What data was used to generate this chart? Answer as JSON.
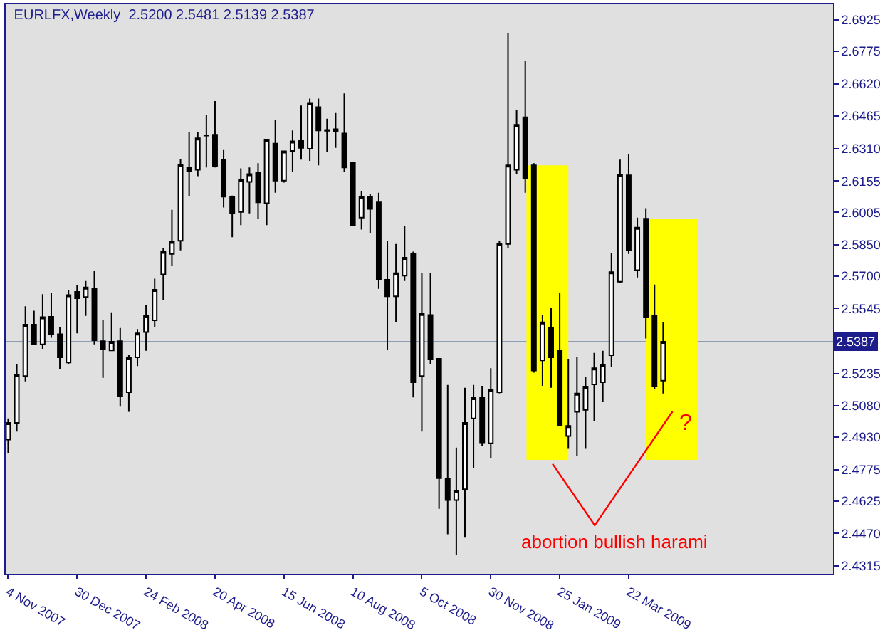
{
  "chart_data": {
    "type": "candlestick",
    "title": "EURLFX,Weekly  2.5200 2.5481 2.5139 2.5387",
    "x": [
      "2007-11-04",
      "2007-11-11",
      "2007-11-18",
      "2007-11-25",
      "2007-12-02",
      "2007-12-09",
      "2007-12-16",
      "2007-12-23",
      "2007-12-30",
      "2008-01-06",
      "2008-01-13",
      "2008-01-20",
      "2008-01-27",
      "2008-02-03",
      "2008-02-10",
      "2008-02-17",
      "2008-02-24",
      "2008-03-02",
      "2008-03-09",
      "2008-03-16",
      "2008-03-23",
      "2008-03-30",
      "2008-04-06",
      "2008-04-13",
      "2008-04-20",
      "2008-04-27",
      "2008-05-04",
      "2008-05-11",
      "2008-05-18",
      "2008-05-25",
      "2008-06-01",
      "2008-06-08",
      "2008-06-15",
      "2008-06-22",
      "2008-06-29",
      "2008-07-06",
      "2008-07-13",
      "2008-07-20",
      "2008-07-27",
      "2008-08-03",
      "2008-08-10",
      "2008-08-17",
      "2008-08-24",
      "2008-08-31",
      "2008-09-07",
      "2008-09-14",
      "2008-09-21",
      "2008-09-28",
      "2008-10-05",
      "2008-10-12",
      "2008-10-19",
      "2008-10-26",
      "2008-11-02",
      "2008-11-09",
      "2008-11-16",
      "2008-11-23",
      "2008-11-30",
      "2008-12-07",
      "2008-12-14",
      "2008-12-21",
      "2008-12-28",
      "2009-01-04",
      "2009-01-11",
      "2009-01-18",
      "2009-01-25",
      "2009-02-01",
      "2009-02-08",
      "2009-02-15",
      "2009-02-22",
      "2009-03-01",
      "2009-03-08",
      "2009-03-15",
      "2009-03-22",
      "2009-03-29",
      "2009-04-05",
      "2009-04-12",
      "2009-04-19"
    ],
    "ohlc": [
      [
        2.4919,
        2.502,
        2.4853,
        2.4999
      ],
      [
        2.4999,
        2.528,
        2.4957,
        2.5228
      ],
      [
        2.5222,
        2.5556,
        2.5197,
        2.5468
      ],
      [
        2.5468,
        2.5535,
        2.537,
        2.5374
      ],
      [
        2.5374,
        2.5614,
        2.5353,
        2.5504
      ],
      [
        2.5506,
        2.5621,
        2.5405,
        2.5422
      ],
      [
        2.5422,
        2.5458,
        2.5255,
        2.5312
      ],
      [
        2.5287,
        2.5635,
        2.528,
        2.561
      ],
      [
        2.5625,
        2.5656,
        2.5427,
        2.5594
      ],
      [
        2.56,
        2.5677,
        2.551,
        2.5646
      ],
      [
        2.564,
        2.5725,
        2.5374,
        2.5393
      ],
      [
        2.5389,
        2.5489,
        2.5214,
        2.5349
      ],
      [
        2.5345,
        2.5527,
        2.5343,
        2.5387
      ],
      [
        2.5389,
        2.5452,
        2.5076,
        2.5128
      ],
      [
        2.5145,
        2.5322,
        2.5051,
        2.5312
      ],
      [
        2.5312,
        2.5447,
        2.527,
        2.5427
      ],
      [
        2.5433,
        2.5562,
        2.5343,
        2.551
      ],
      [
        2.5489,
        2.5688,
        2.5458,
        2.5635
      ],
      [
        2.5708,
        2.5834,
        2.5587,
        2.5817
      ],
      [
        2.5806,
        2.6017,
        2.575,
        2.5865
      ],
      [
        2.5869,
        2.6261,
        2.5823,
        2.6234
      ],
      [
        2.6219,
        2.6387,
        2.6084,
        2.6203
      ],
      [
        2.6209,
        2.6391,
        2.6178,
        2.6359
      ],
      [
        2.6372,
        2.647,
        2.622,
        2.6374
      ],
      [
        2.6376,
        2.6537,
        2.622,
        2.6224
      ],
      [
        2.6257,
        2.6303,
        2.6028,
        2.608
      ],
      [
        2.608,
        2.6085,
        2.5886,
        2.6
      ],
      [
        2.6007,
        2.6215,
        2.5944,
        2.6161
      ],
      [
        2.6151,
        2.622,
        2.6,
        2.6188
      ],
      [
        2.6193,
        2.624,
        2.5973,
        2.6053
      ],
      [
        2.6049,
        2.6357,
        2.5944,
        2.6353
      ],
      [
        2.6334,
        2.6445,
        2.6099,
        2.6157
      ],
      [
        2.6157,
        2.6299,
        2.6147,
        2.6297
      ],
      [
        2.6299,
        2.6397,
        2.6199,
        2.6345
      ],
      [
        2.6349,
        2.6516,
        2.6257,
        2.6313
      ],
      [
        2.6309,
        2.6549,
        2.6251,
        2.6529
      ],
      [
        2.6508,
        2.6549,
        2.623,
        2.6397
      ],
      [
        2.6399,
        2.6453,
        2.6293,
        2.6395
      ],
      [
        2.6403,
        2.648,
        2.6313,
        2.6393
      ],
      [
        2.6382,
        2.6574,
        2.6199,
        2.622
      ],
      [
        2.6241,
        2.6247,
        2.5938,
        2.5944
      ],
      [
        2.598,
        2.6105,
        2.5923,
        2.6078
      ],
      [
        2.6078,
        2.6095,
        2.5907,
        2.6021
      ],
      [
        2.6053,
        2.6099,
        2.5639,
        2.5683
      ],
      [
        2.5683,
        2.5869,
        2.5349,
        2.5604
      ],
      [
        2.5604,
        2.5854,
        2.5479,
        2.5714
      ],
      [
        2.5702,
        2.5938,
        2.5677,
        2.5788
      ],
      [
        2.5806,
        2.5817,
        2.512,
        2.5193
      ],
      [
        2.5222,
        2.5715,
        2.4957,
        2.552
      ],
      [
        2.5514,
        2.5715,
        2.528,
        2.5305
      ],
      [
        2.5305,
        2.5307,
        2.4588,
        2.4734
      ],
      [
        2.4732,
        2.518,
        2.4466,
        2.4629
      ],
      [
        2.4629,
        2.488,
        2.4366,
        2.4675
      ],
      [
        2.4681,
        2.5166,
        2.445,
        2.4999
      ],
      [
        2.502,
        2.518,
        2.4784,
        2.5118
      ],
      [
        2.5118,
        2.5176,
        2.4888,
        2.4905
      ],
      [
        2.4901,
        2.526,
        2.4832,
        2.5159
      ],
      [
        2.5145,
        2.5869,
        2.514,
        2.5854
      ],
      [
        2.5854,
        2.6863,
        2.5834,
        2.623
      ],
      [
        2.6209,
        2.6495,
        2.6188,
        2.6424
      ],
      [
        2.646,
        2.6731,
        2.6099,
        2.6168
      ],
      [
        2.623,
        2.624,
        2.5239,
        2.5249
      ],
      [
        2.5297,
        2.5514,
        2.5176,
        2.5479
      ],
      [
        2.5452,
        2.5548,
        2.5166,
        2.5312
      ],
      [
        2.5343,
        2.5619,
        2.4984,
        2.4988
      ],
      [
        2.4936,
        2.5305,
        2.4874,
        2.4984
      ],
      [
        2.5051,
        2.5312,
        2.4842,
        2.5139
      ],
      [
        2.5061,
        2.5218,
        2.4874,
        2.5172
      ],
      [
        2.5182,
        2.5333,
        2.5009,
        2.526
      ],
      [
        2.5193,
        2.5343,
        2.5097,
        2.5276
      ],
      [
        2.5322,
        2.5812,
        2.5264,
        2.5719
      ],
      [
        2.5673,
        2.6257,
        2.5667,
        2.6184
      ],
      [
        2.6182,
        2.6282,
        2.5806,
        2.5823
      ],
      [
        2.5729,
        2.598,
        2.5694,
        2.5932
      ],
      [
        2.5975,
        2.6025,
        2.5402,
        2.5506
      ],
      [
        2.551,
        2.566,
        2.5162,
        2.5176
      ],
      [
        2.52,
        2.5481,
        2.5139,
        2.5387
      ]
    ],
    "xlim": [
      "2007-11-02",
      "2009-09-04"
    ],
    "xticks": [
      {
        "value": "2007-11-04",
        "label": "4 Nov 2007"
      },
      {
        "value": "2007-12-30",
        "label": "30 Dec 2007"
      },
      {
        "value": "2008-02-24",
        "label": "24 Feb 2008"
      },
      {
        "value": "2008-04-20",
        "label": "20 Apr 2008"
      },
      {
        "value": "2008-06-15",
        "label": "15 Jun 2008"
      },
      {
        "value": "2008-08-10",
        "label": "10 Aug 2008"
      },
      {
        "value": "2008-10-05",
        "label": "5 Oct 2008"
      },
      {
        "value": "2008-11-30",
        "label": "30 Nov 2008"
      },
      {
        "value": "2009-01-25",
        "label": "25 Jan 2009"
      },
      {
        "value": "2009-03-22",
        "label": "22 Mar 2009"
      }
    ],
    "ylim": [
      2.4277,
      2.7
    ],
    "yticks": [
      2.6925,
      2.6775,
      {
        "value": 2.662,
        "label": "2.6620"
      },
      2.6465,
      {
        "value": 2.631,
        "label": "2.6310"
      },
      2.6155,
      2.6005,
      {
        "value": 2.585,
        "label": "2.5850"
      },
      {
        "value": 2.57,
        "label": "2.5700"
      },
      2.5545,
      2.5235,
      {
        "value": 2.508,
        "label": "2.5080"
      },
      {
        "value": 2.493,
        "label": "2.4930"
      },
      2.4775,
      2.4625,
      {
        "value": 2.447,
        "label": "2.4470"
      },
      2.4315
    ],
    "ref_lines": [
      {
        "axis": "y",
        "value": 2.5387,
        "label": "2.5387",
        "color": "#8c9cb4"
      }
    ],
    "bands": [
      {
        "axis": "x",
        "from": "2008-12-29",
        "to": "2009-02-01",
        "color": "#ffff00"
      },
      {
        "axis": "x",
        "from": "2009-04-05",
        "to": "2009-05-17",
        "color": "#ffff00"
      }
    ],
    "annotations": [
      "abortion bullish harami",
      {
        "text": "?",
        "x": "2009-04-19",
        "y": 2.5139
      }
    ],
    "grid": false
  }
}
